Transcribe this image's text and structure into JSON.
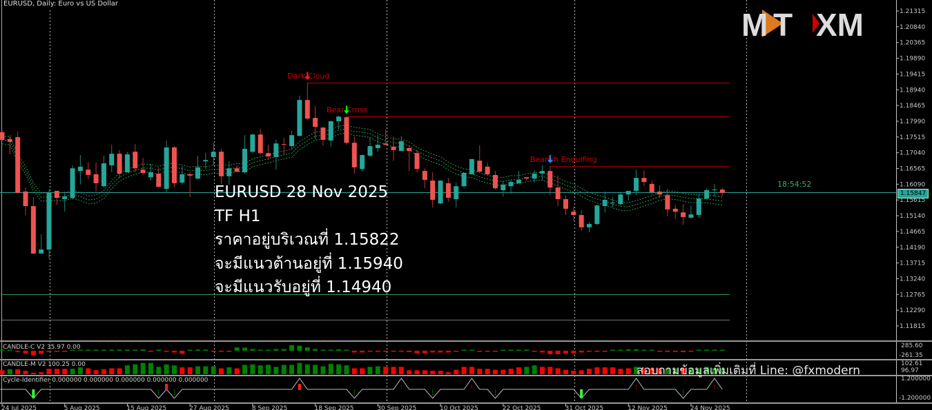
{
  "header": {
    "title": "EURUSD, Daily:  Euro vs US Dollar"
  },
  "overlay": {
    "lines": [
      "EURUSD 28 Nov 2025",
      "TF H1",
      "ราคาอยู่บริเวณที่ 1.15822",
      "จะมีแนวต้านอยู่ที่ 1.15940",
      "จะมีแนวรับอยู่ที่ 1.14940"
    ],
    "footer": "สอบถามข้อมูลเพิ่มเติมที่ Line: @fxmodern",
    "countdown": "18:54:52"
  },
  "logo": {
    "text_left": "MT",
    "text_right": "XM"
  },
  "colors": {
    "bull": "#26a69a",
    "bear": "#ef5350",
    "grid": "#c8c8c8",
    "signal_red": "#d00000",
    "current_price": "#26a69a",
    "envelope": "#2e9a55",
    "hist_green": "#008000",
    "hist_red": "#ff0000"
  },
  "chart_data": {
    "type": "candlestick",
    "symbol": "EURUSD",
    "timeframe": "Daily",
    "current_price": "1.15847",
    "price_axis": [
      "1.21315",
      "1.20840",
      "1.20365",
      "1.19890",
      "1.19415",
      "1.18940",
      "1.18465",
      "1.17990",
      "1.17515",
      "1.17040",
      "1.16565",
      "1.16090",
      "1.15615",
      "1.15140",
      "1.14665",
      "1.14190",
      "1.13715",
      "1.13240",
      "1.12765",
      "1.12290",
      "1.11815"
    ],
    "date_labels": [
      {
        "label": "24 Jul 2025",
        "index": 0
      },
      {
        "label": "5 Aug 2025",
        "index": 8
      },
      {
        "label": "15 Aug 2025",
        "index": 16
      },
      {
        "label": "27 Aug 2025",
        "index": 24
      },
      {
        "label": "8 Sep 2025",
        "index": 32
      },
      {
        "label": "18 Sep 2025",
        "index": 40
      },
      {
        "label": "30 Sep 2025",
        "index": 48
      },
      {
        "label": "10 Oct 2025",
        "index": 56
      },
      {
        "label": "22 Oct 2025",
        "index": 64
      },
      {
        "label": "31 Oct 2025",
        "index": 72
      },
      {
        "label": "12 Nov 2025",
        "index": 80
      },
      {
        "label": "24 Nov 2025",
        "index": 88
      }
    ],
    "separator_indices": [
      6,
      27,
      49,
      73,
      95
    ],
    "ohlc": [
      [
        1.1766,
        1.1774,
        1.1737,
        1.1743
      ],
      [
        1.1745,
        1.1757,
        1.1699,
        1.1737
      ],
      [
        1.1751,
        1.1768,
        1.1583,
        1.1583
      ],
      [
        1.1587,
        1.1599,
        1.1516,
        1.1543
      ],
      [
        1.1543,
        1.157,
        1.1398,
        1.14
      ],
      [
        1.14,
        1.1458,
        1.14,
        1.1412
      ],
      [
        1.1412,
        1.1593,
        1.1385,
        1.1583
      ],
      [
        1.1589,
        1.1589,
        1.1547,
        1.1568
      ],
      [
        1.1564,
        1.1587,
        1.1526,
        1.1572
      ],
      [
        1.1568,
        1.1666,
        1.1562,
        1.1657
      ],
      [
        1.1649,
        1.1697,
        1.1608,
        1.1662
      ],
      [
        1.1653,
        1.1676,
        1.1624,
        1.1637
      ],
      [
        1.1639,
        1.1674,
        1.1587,
        1.1612
      ],
      [
        1.1603,
        1.1695,
        1.1599,
        1.1672
      ],
      [
        1.1666,
        1.1728,
        1.1645,
        1.1701
      ],
      [
        1.1701,
        1.1712,
        1.1628,
        1.1641
      ],
      [
        1.1645,
        1.1707,
        1.1645,
        1.1699
      ],
      [
        1.1707,
        1.173,
        1.1645,
        1.1657
      ],
      [
        1.1653,
        1.1689,
        1.1637,
        1.1643
      ],
      [
        1.163,
        1.167,
        1.162,
        1.1645
      ],
      [
        1.1641,
        1.166,
        1.1601,
        1.1601
      ],
      [
        1.1595,
        1.1741,
        1.1583,
        1.172
      ],
      [
        1.172,
        1.1724,
        1.1599,
        1.1612
      ],
      [
        1.1614,
        1.1664,
        1.1608,
        1.1639
      ],
      [
        1.1639,
        1.1645,
        1.157,
        1.1635
      ],
      [
        1.1626,
        1.1695,
        1.1624,
        1.166
      ],
      [
        1.1678,
        1.1703,
        1.1655,
        1.1682
      ],
      [
        1.1691,
        1.1734,
        1.1666,
        1.1707
      ],
      [
        1.1707,
        1.1716,
        1.161,
        1.1633
      ],
      [
        1.1633,
        1.1678,
        1.1608,
        1.1657
      ],
      [
        1.1657,
        1.1666,
        1.1645,
        1.1647
      ],
      [
        1.1645,
        1.1757,
        1.1641,
        1.1716
      ],
      [
        1.1707,
        1.1761,
        1.1703,
        1.1759
      ],
      [
        1.1759,
        1.1776,
        1.1699,
        1.1703
      ],
      [
        1.1703,
        1.1728,
        1.1682,
        1.1693
      ],
      [
        1.1691,
        1.1743,
        1.1653,
        1.1732
      ],
      [
        1.173,
        1.1749,
        1.1697,
        1.1728
      ],
      [
        1.1724,
        1.177,
        1.1714,
        1.1757
      ],
      [
        1.1755,
        1.1876,
        1.1753,
        1.1863
      ],
      [
        1.1863,
        1.1915,
        1.1803,
        1.1807
      ],
      [
        1.1809,
        1.1845,
        1.1745,
        1.1782
      ],
      [
        1.178,
        1.1782,
        1.1726,
        1.1743
      ],
      [
        1.1741,
        1.1801,
        1.1722,
        1.1799
      ],
      [
        1.1799,
        1.1816,
        1.1774,
        1.1813
      ],
      [
        1.1811,
        1.1813,
        1.1728,
        1.1734
      ],
      [
        1.1734,
        1.1753,
        1.1641,
        1.166
      ],
      [
        1.1655,
        1.1699,
        1.1649,
        1.1697
      ],
      [
        1.1695,
        1.1749,
        1.1691,
        1.1724
      ],
      [
        1.1718,
        1.1757,
        1.1707,
        1.1728
      ],
      [
        1.1732,
        1.1774,
        1.1728,
        1.1728
      ],
      [
        1.1722,
        1.1753,
        1.168,
        1.1712
      ],
      [
        1.1709,
        1.1755,
        1.1709,
        1.1739
      ],
      [
        1.1718,
        1.1728,
        1.1649,
        1.1709
      ],
      [
        1.1703,
        1.1712,
        1.1645,
        1.1655
      ],
      [
        1.1649,
        1.1657,
        1.1597,
        1.1622
      ],
      [
        1.162,
        1.1645,
        1.1539,
        1.1562
      ],
      [
        1.1551,
        1.162,
        1.1549,
        1.162
      ],
      [
        1.1612,
        1.1628,
        1.1556,
        1.1568
      ],
      [
        1.1564,
        1.1614,
        1.1539,
        1.1603
      ],
      [
        1.1603,
        1.1645,
        1.1599,
        1.1643
      ],
      [
        1.1639,
        1.1685,
        1.1639,
        1.1685
      ],
      [
        1.168,
        1.1726,
        1.1645,
        1.1647
      ],
      [
        1.1662,
        1.1674,
        1.1635,
        1.1639
      ],
      [
        1.1637,
        1.1649,
        1.1593,
        1.1597
      ],
      [
        1.1591,
        1.1618,
        1.1572,
        1.1608
      ],
      [
        1.1603,
        1.1622,
        1.158,
        1.1616
      ],
      [
        1.1612,
        1.1649,
        1.1612,
        1.1622
      ],
      [
        1.163,
        1.163,
        1.162,
        1.1626
      ],
      [
        1.1626,
        1.1651,
        1.1614,
        1.1641
      ],
      [
        1.1641,
        1.1666,
        1.1622,
        1.1649
      ],
      [
        1.1649,
        1.1664,
        1.1576,
        1.1599
      ],
      [
        1.1599,
        1.1635,
        1.1543,
        1.1564
      ],
      [
        1.1564,
        1.1576,
        1.1516,
        1.1535
      ],
      [
        1.1526,
        1.1541,
        1.1499,
        1.1516
      ],
      [
        1.1516,
        1.1531,
        1.1468,
        1.1479
      ],
      [
        1.1479,
        1.1495,
        1.1464,
        1.1489
      ],
      [
        1.1489,
        1.1547,
        1.1485,
        1.1545
      ],
      [
        1.1543,
        1.1587,
        1.1524,
        1.1562
      ],
      [
        1.1553,
        1.157,
        1.1539,
        1.1554
      ],
      [
        1.1549,
        1.1583,
        1.1545,
        1.1578
      ],
      [
        1.1578,
        1.1589,
        1.156,
        1.1589
      ],
      [
        1.1589,
        1.1653,
        1.1576,
        1.1628
      ],
      [
        1.1628,
        1.1651,
        1.1603,
        1.1616
      ],
      [
        1.161,
        1.162,
        1.1578,
        1.1585
      ],
      [
        1.1587,
        1.1606,
        1.1568,
        1.1578
      ],
      [
        1.1576,
        1.1595,
        1.1514,
        1.1533
      ],
      [
        1.1535,
        1.1547,
        1.1504,
        1.1526
      ],
      [
        1.1524,
        1.1549,
        1.1487,
        1.151
      ],
      [
        1.1508,
        1.1545,
        1.1506,
        1.1518
      ],
      [
        1.1516,
        1.158,
        1.1508,
        1.1566
      ],
      [
        1.1566,
        1.1597,
        1.1564,
        1.1591
      ],
      [
        1.1591,
        1.161,
        1.1572,
        1.1593
      ],
      [
        1.1593,
        1.1599,
        1.1574,
        1.1583
      ]
    ],
    "levels": [
      {
        "price": 1.1915,
        "from_index": 39,
        "color": "#c00000"
      },
      {
        "price": 1.1813,
        "from_index": 44,
        "color": "#c00000"
      },
      {
        "price": 1.1664,
        "from_index": 70,
        "color": "#a00000"
      },
      {
        "price": 1.1277,
        "from_index": 0,
        "color": "#2e9a55"
      },
      {
        "price": 1.12,
        "from_index": 0,
        "color": "#6a7a70"
      }
    ],
    "signals": [
      {
        "label": "Dark Cloud",
        "index": 39,
        "arrow_color": "#ff2020"
      },
      {
        "label": "Bear Cross",
        "index": 44,
        "arrow_color": "#00ff00"
      },
      {
        "label": "Bearish Engulfing",
        "index": 70,
        "arrow_color": "#1e90ff"
      }
    ]
  },
  "indicators": {
    "candle_c": {
      "label": "CANDLE-C V2 35.97 0.00",
      "axis_max": "285.60",
      "axis_min": "-261.35",
      "values": [
        10,
        0,
        -40,
        -90,
        -160,
        -110,
        -40,
        -15,
        -15,
        5,
        5,
        5,
        5,
        5,
        40,
        40,
        40,
        10,
        50,
        -15,
        40,
        -15,
        -60,
        -110,
        5,
        40,
        40,
        -15,
        -15,
        -15,
        120,
        110,
        60,
        15,
        15,
        60,
        60,
        200,
        180,
        120,
        60,
        15,
        15,
        50,
        10,
        -60,
        -60,
        -15,
        -15,
        -15,
        -30,
        -15,
        -50,
        -90,
        -90,
        -60,
        -60,
        -60,
        -15,
        10,
        5,
        -15,
        -15,
        -15,
        10,
        10,
        10,
        40,
        -15,
        -60,
        -120,
        -120,
        -100,
        -90,
        -60,
        -15,
        -15,
        -15,
        10,
        10,
        50,
        50,
        20,
        20,
        -15,
        -40,
        -40,
        -50,
        -15,
        10,
        10,
        10,
        10
      ]
    },
    "candle_m": {
      "label": "CANDLE-M V2 100.25 0.00",
      "axis_max": "102.61",
      "axis_min": "96.97",
      "values": [
        -40,
        50,
        -50,
        -35,
        -15,
        -20,
        -55,
        -55,
        -55,
        55,
        70,
        -60,
        -40,
        -50,
        -60,
        -60,
        90,
        100,
        115,
        115,
        75,
        100,
        90,
        -70,
        -70,
        80,
        80,
        80,
        -60,
        70,
        -60,
        95,
        100,
        90,
        95,
        75,
        95,
        95,
        115,
        100,
        95,
        80,
        105,
        100,
        90,
        -60,
        -60,
        75,
        80,
        -75,
        -75,
        -75,
        -40,
        -40,
        -40,
        -35,
        -35,
        -20,
        -45,
        -75,
        -75,
        -55,
        -55,
        -45,
        -45,
        -55,
        -70,
        75,
        90,
        -75,
        -75,
        -60,
        -45,
        -35,
        -40,
        -55,
        -70,
        -70,
        -70,
        -55,
        -60,
        75,
        -60,
        -60,
        -60,
        60,
        60,
        -60,
        60,
        60,
        75,
        60,
        60
      ]
    },
    "cycle": {
      "label": "Cycle-Identifier 0.000000 0.000000 0.000000 0.000000 0.000000",
      "axis_max": "1.200000",
      "axis_min": "-1.200000",
      "values": [
        0,
        0,
        0,
        0,
        -1,
        0,
        0,
        0,
        0,
        0,
        0,
        0,
        0,
        0,
        0,
        0,
        0,
        0,
        0,
        0,
        -1,
        0,
        -1,
        0,
        0,
        0,
        0,
        0,
        0,
        0,
        0,
        0,
        0,
        0,
        0,
        0,
        0,
        0,
        1,
        0,
        0,
        0,
        0,
        0,
        0,
        -1,
        0,
        0,
        0,
        0,
        0,
        1,
        0,
        0,
        0,
        -1,
        0,
        0,
        0,
        0,
        1,
        0,
        0,
        -1,
        0,
        0,
        0,
        0,
        0,
        0,
        0,
        0,
        0,
        0,
        -1,
        0,
        0,
        0,
        0,
        0,
        0,
        1,
        0,
        0,
        0,
        0,
        0,
        -1,
        0,
        0,
        0,
        1,
        0
      ],
      "strong_signals": [
        {
          "index": 4,
          "color": "#33ff33"
        },
        {
          "index": 21,
          "color": "#ff2020"
        },
        {
          "index": 38,
          "color": "#ff2020"
        },
        {
          "index": 74,
          "color": "#33ff33"
        }
      ]
    }
  }
}
